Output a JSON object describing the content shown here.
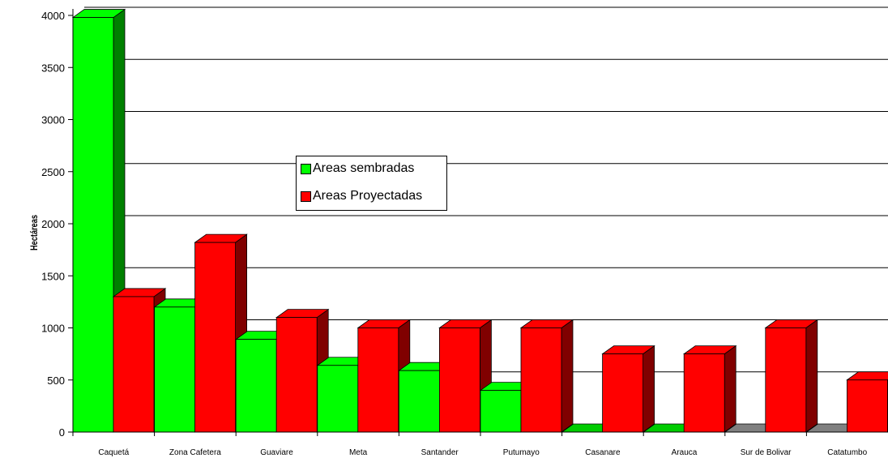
{
  "chart_data": {
    "type": "bar",
    "ylabel": "Hectáreas",
    "ylim": [
      0,
      4000
    ],
    "yticks": [
      "0",
      "500",
      "1000",
      "1500",
      "2000",
      "2500",
      "3000",
      "3500",
      "4000"
    ],
    "grid": true,
    "legend_position": "center",
    "categories": [
      "Caquetá",
      "Zona Cafetera",
      "Guaviare",
      "Meta",
      "Santander",
      "Putumayo",
      "Casanare",
      "Arauca",
      "Sur de Bolivar",
      "Catatumbo"
    ],
    "series": [
      {
        "name": "Areas sembradas",
        "values": [
          3980,
          1200,
          890,
          640,
          590,
          400,
          0,
          0,
          0,
          0
        ],
        "color": "#00ff00",
        "side_color": "#008000"
      },
      {
        "name": "Areas Proyectadas",
        "values": [
          1300,
          1820,
          1100,
          1000,
          1000,
          1000,
          750,
          750,
          1000,
          500
        ],
        "color": "#ff0000",
        "side_color": "#800000"
      }
    ]
  }
}
